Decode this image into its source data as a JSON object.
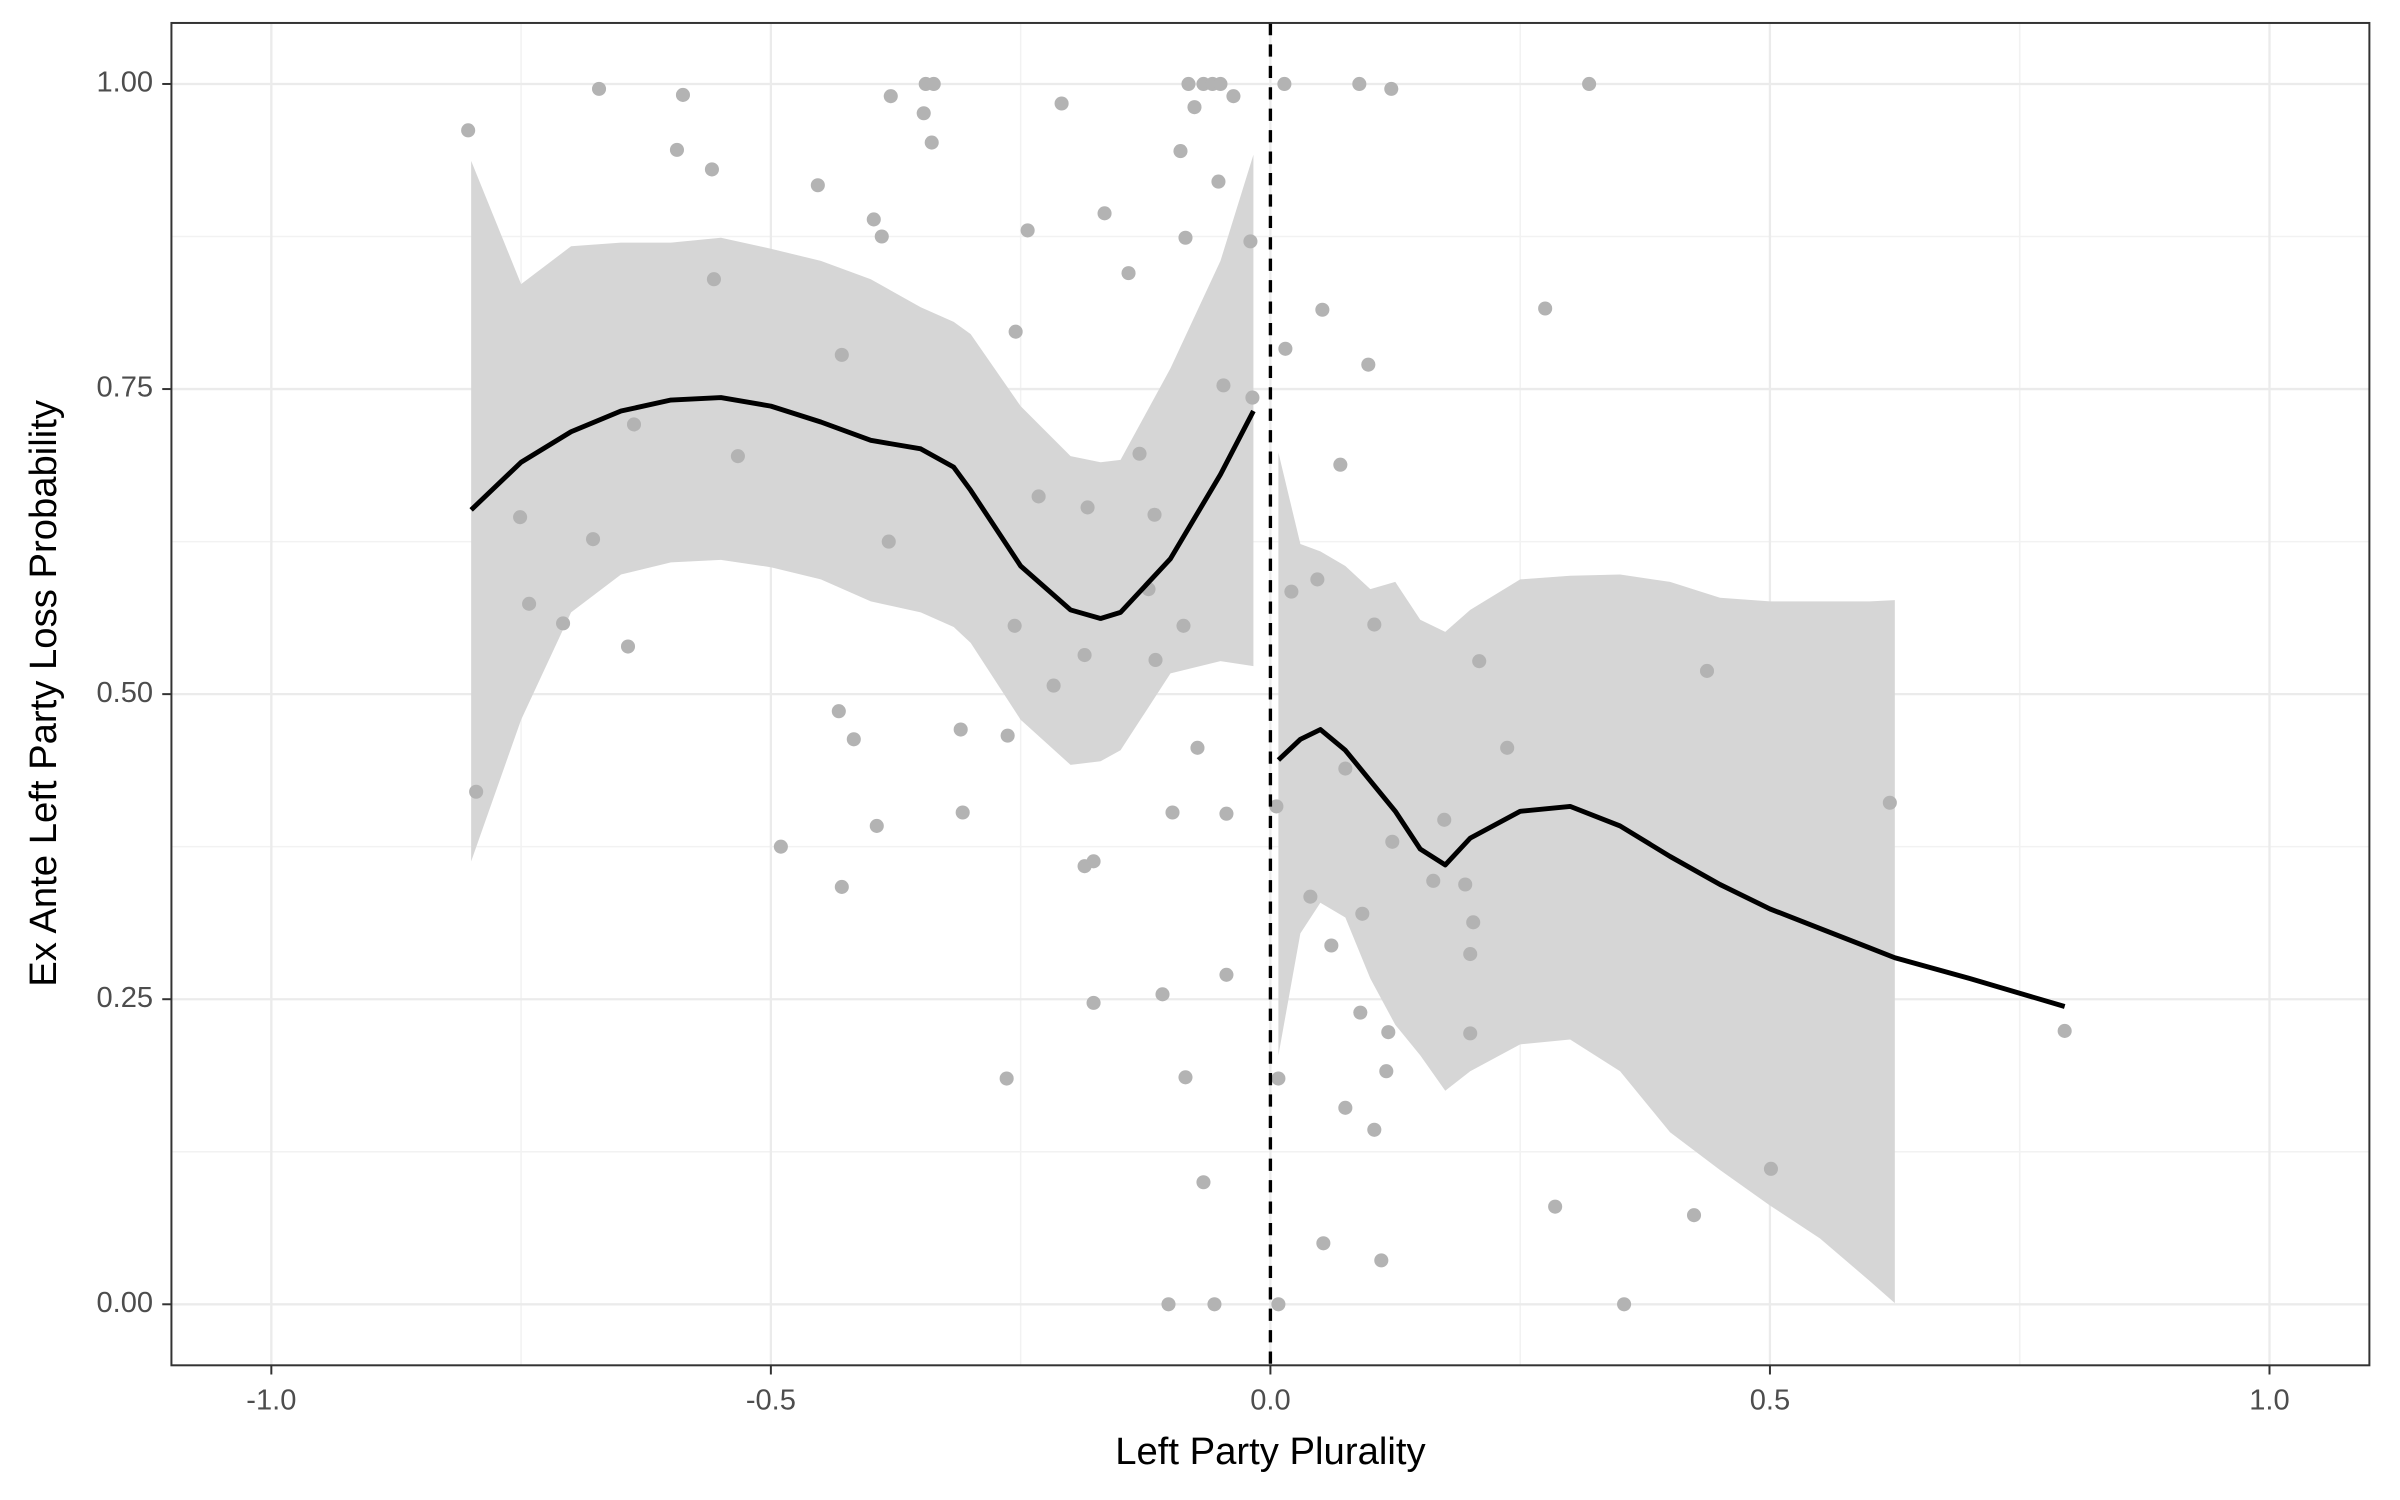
{
  "chart_data": {
    "type": "scatter",
    "xlabel": "Left Party Plurality",
    "ylabel": "Ex Ante Left Party Loss Probability",
    "xlim": [
      -1.1,
      1.1
    ],
    "ylim": [
      -0.05,
      1.05
    ],
    "xticks": [
      {
        "value": -1,
        "label": "-1.0"
      },
      -0.5,
      {
        "value": 0,
        "label": "0.0"
      },
      0.5,
      {
        "value": 1,
        "label": "1.0"
      }
    ],
    "yticks": [
      {
        "value": 0,
        "label": "0.00"
      },
      0.25,
      {
        "value": 0.5,
        "label": "0.50"
      },
      0.75,
      {
        "value": 1,
        "label": "1.00"
      }
    ],
    "grid": true,
    "color": "#b3b3b3",
    "x": [
      -0.803,
      -0.795,
      -0.751,
      -0.742,
      -0.708,
      -0.678,
      -0.672,
      -0.643,
      -0.637,
      -0.594,
      -0.588,
      -0.559,
      -0.557,
      -0.533,
      -0.49,
      -0.453,
      -0.432,
      -0.429,
      -0.429,
      -0.417,
      -0.397,
      -0.394,
      -0.389,
      -0.382,
      -0.38,
      -0.347,
      -0.345,
      -0.337,
      -0.339,
      -0.31,
      -0.308,
      -0.264,
      -0.263,
      -0.256,
      -0.255,
      -0.243,
      -0.232,
      -0.217,
      -0.209,
      -0.186,
      -0.186,
      -0.183,
      -0.177,
      -0.177,
      -0.166,
      -0.142,
      -0.131,
      -0.122,
      -0.116,
      -0.115,
      -0.108,
      -0.102,
      -0.098,
      -0.09,
      -0.087,
      -0.085,
      -0.085,
      -0.082,
      -0.076,
      -0.073,
      -0.067,
      -0.067,
      -0.058,
      -0.056,
      -0.052,
      -0.05,
      -0.047,
      -0.044,
      -0.044,
      -0.037,
      -0.02,
      -0.018,
      0.006,
      0.008,
      0.008,
      0.014,
      0.015,
      0.021,
      0.04,
      0.047,
      0.052,
      0.053,
      0.061,
      0.07,
      0.075,
      0.075,
      0.089,
      0.09,
      0.092,
      0.098,
      0.104,
      0.104,
      0.111,
      0.116,
      0.118,
      0.121,
      0.122,
      0.163,
      0.174,
      0.195,
      0.2,
      0.2,
      0.203,
      0.209,
      0.237,
      0.275,
      0.285,
      0.319,
      0.354,
      0.424,
      0.437,
      0.501,
      0.62,
      0.795
    ],
    "values": [
      0.962,
      0.42,
      0.645,
      0.574,
      0.558,
      0.627,
      0.996,
      0.539,
      0.721,
      0.946,
      0.991,
      0.93,
      0.84,
      0.695,
      0.375,
      0.917,
      0.486,
      0.778,
      0.342,
      0.463,
      0.889,
      0.392,
      0.875,
      0.625,
      0.99,
      0.976,
      1.0,
      1.0,
      0.952,
      0.471,
      0.403,
      0.185,
      0.466,
      0.556,
      0.797,
      0.88,
      0.662,
      0.507,
      0.984,
      0.532,
      0.359,
      0.653,
      0.363,
      0.247,
      0.894,
      0.845,
      0.697,
      0.586,
      0.647,
      0.528,
      0.254,
      0.0,
      0.403,
      0.945,
      0.556,
      0.186,
      0.874,
      1.0,
      0.981,
      0.456,
      0.1,
      1.0,
      1.0,
      0.0,
      0.92,
      1.0,
      0.753,
      0.402,
      0.27,
      0.99,
      0.871,
      0.743,
      0.408,
      0.185,
      0.0,
      1.0,
      0.783,
      0.584,
      0.334,
      0.594,
      0.815,
      0.05,
      0.294,
      0.688,
      0.439,
      0.161,
      1.0,
      0.239,
      0.32,
      0.77,
      0.557,
      0.143,
      0.036,
      0.191,
      0.223,
      0.996,
      0.379,
      0.347,
      0.397,
      0.344,
      0.287,
      0.222,
      0.313,
      0.527,
      0.456,
      0.816,
      0.08,
      1.0,
      0.0,
      0.073,
      0.519,
      0.111,
      0.411,
      0.224
    ],
    "vline": 0,
    "smooths": [
      {
        "color": "#000000",
        "fill": "#d6d6d6",
        "x": [
          -0.8,
          -0.75,
          -0.7,
          -0.65,
          -0.6,
          -0.55,
          -0.5,
          -0.45,
          -0.4,
          -0.35,
          -0.317,
          -0.3,
          -0.25,
          -0.2,
          -0.17,
          -0.15,
          -0.1,
          -0.05,
          -0.017
        ],
        "values": [
          0.651,
          0.69,
          0.715,
          0.732,
          0.741,
          0.743,
          0.736,
          0.723,
          0.708,
          0.701,
          0.686,
          0.667,
          0.605,
          0.569,
          0.562,
          0.567,
          0.611,
          0.68,
          0.732
        ],
        "lower": [
          0.363,
          0.479,
          0.567,
          0.598,
          0.608,
          0.61,
          0.604,
          0.594,
          0.576,
          0.567,
          0.555,
          0.542,
          0.479,
          0.442,
          0.445,
          0.454,
          0.517,
          0.527,
          0.523
        ],
        "upper": [
          0.937,
          0.836,
          0.867,
          0.87,
          0.87,
          0.874,
          0.865,
          0.855,
          0.84,
          0.817,
          0.805,
          0.795,
          0.736,
          0.695,
          0.69,
          0.692,
          0.767,
          0.855,
          0.942
        ]
      },
      {
        "color": "#000000",
        "fill": "#d6d6d6",
        "x": [
          0.008,
          0.03,
          0.05,
          0.075,
          0.1,
          0.125,
          0.15,
          0.175,
          0.2,
          0.25,
          0.3,
          0.35,
          0.4,
          0.45,
          0.5,
          0.55,
          0.6,
          0.625,
          0.7,
          0.795
        ],
        "values": [
          0.446,
          0.463,
          0.471,
          0.454,
          0.429,
          0.404,
          0.373,
          0.36,
          0.382,
          0.404,
          0.408,
          0.392,
          0.367,
          0.344,
          0.324,
          0.308,
          0.292,
          0.284,
          0.267,
          0.244
        ],
        "lower": [
          0.204,
          0.304,
          0.329,
          0.317,
          0.267,
          0.229,
          0.204,
          0.175,
          0.191,
          0.213,
          0.217,
          0.191,
          0.141,
          0.11,
          0.081,
          0.054,
          0.019,
          0.001,
          null,
          null
        ],
        "upper": [
          0.698,
          0.623,
          0.617,
          0.605,
          0.586,
          0.592,
          0.561,
          0.551,
          0.569,
          0.594,
          0.597,
          0.598,
          0.592,
          0.579,
          0.576,
          0.576,
          0.576,
          0.577,
          null,
          null
        ]
      }
    ]
  }
}
